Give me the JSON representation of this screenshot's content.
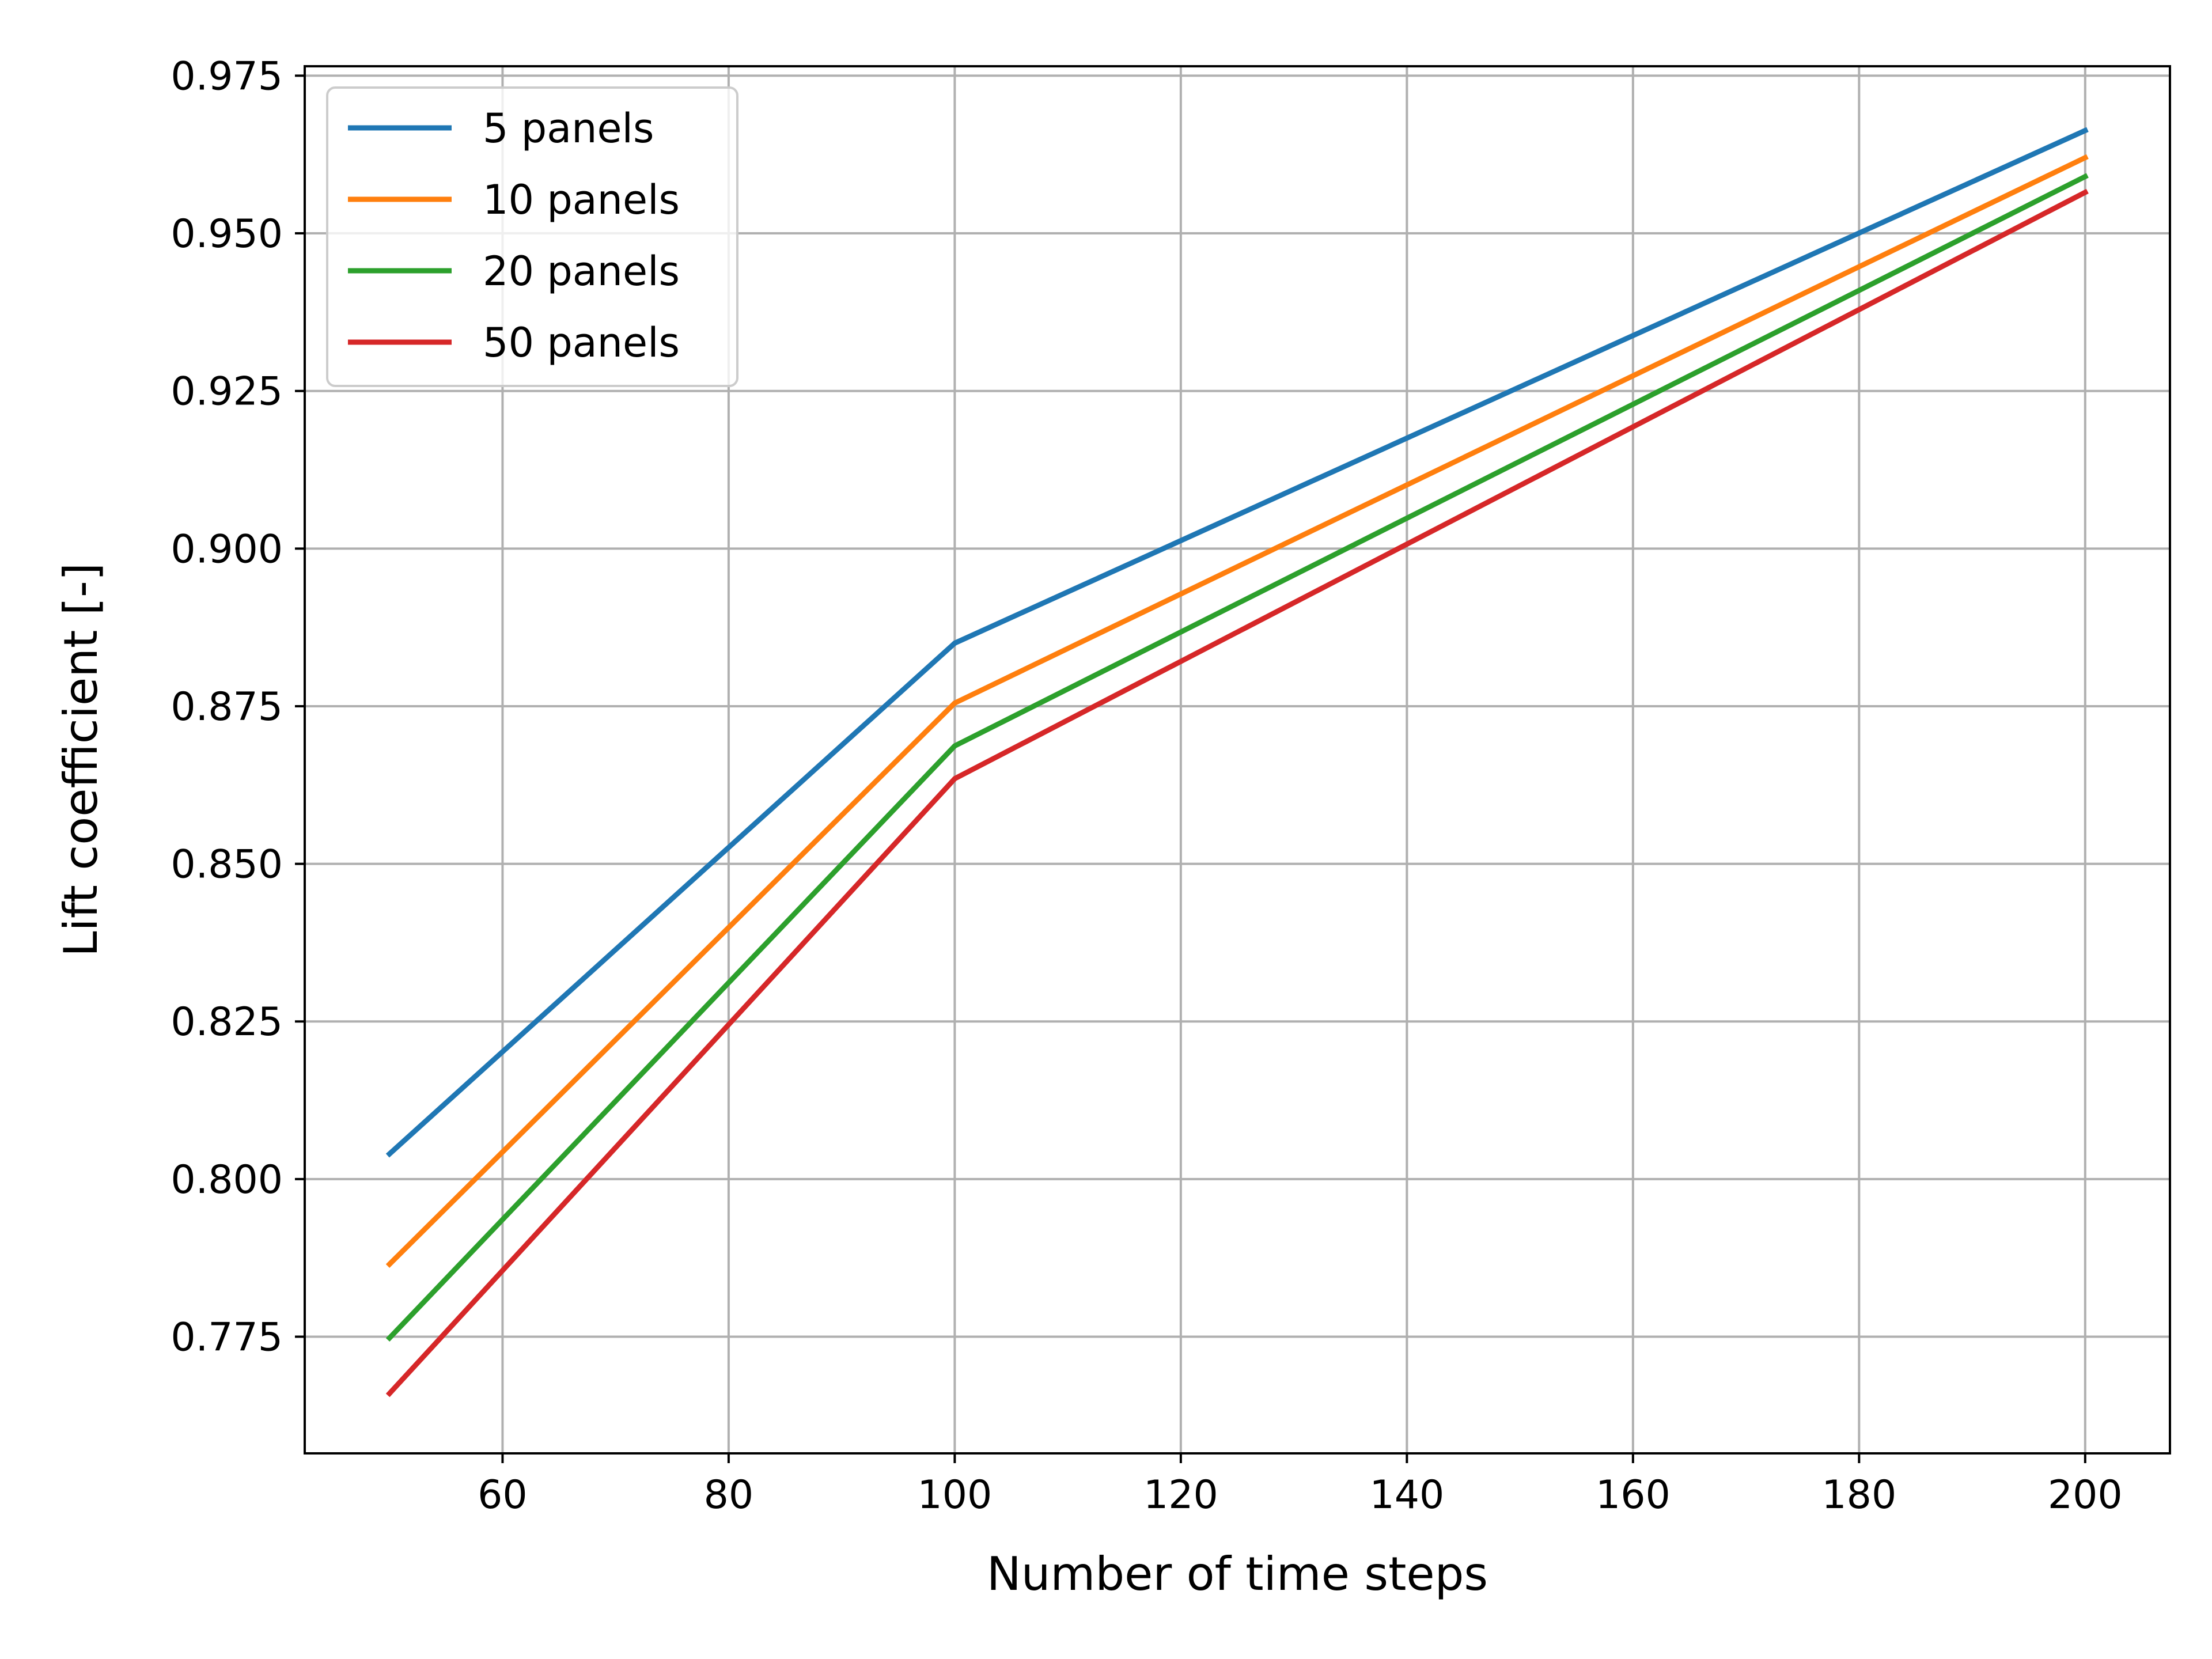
{
  "chart_data": {
    "type": "line",
    "xlabel": "Number of time steps",
    "ylabel": "Lift coefficient [-]",
    "xlim": [
      42.5,
      207.5
    ],
    "ylim": [
      0.7565,
      0.9765
    ],
    "xticks": [
      60,
      80,
      100,
      120,
      140,
      160,
      180,
      200
    ],
    "yticks": [
      0.775,
      0.8,
      0.825,
      0.85,
      0.875,
      0.9,
      0.925,
      0.95,
      0.975
    ],
    "xtick_labels": [
      "60",
      "80",
      "100",
      "120",
      "140",
      "160",
      "180",
      "200"
    ],
    "ytick_labels": [
      "0.775",
      "0.800",
      "0.825",
      "0.850",
      "0.875",
      "0.900",
      "0.925",
      "0.950",
      "0.975"
    ],
    "grid": true,
    "legend_position": "top-left",
    "x": [
      50,
      100,
      200
    ],
    "series": [
      {
        "name": "5 panels",
        "color": "#1f77b4",
        "values": [
          0.804,
          0.885,
          0.9663
        ]
      },
      {
        "name": "10 panels",
        "color": "#ff7f0e",
        "values": [
          0.7865,
          0.8755,
          0.962
        ]
      },
      {
        "name": "20 panels",
        "color": "#2ca02c",
        "values": [
          0.7748,
          0.8687,
          0.959
        ]
      },
      {
        "name": "50 panels",
        "color": "#d62728",
        "values": [
          0.766,
          0.8635,
          0.9565
        ]
      }
    ]
  }
}
